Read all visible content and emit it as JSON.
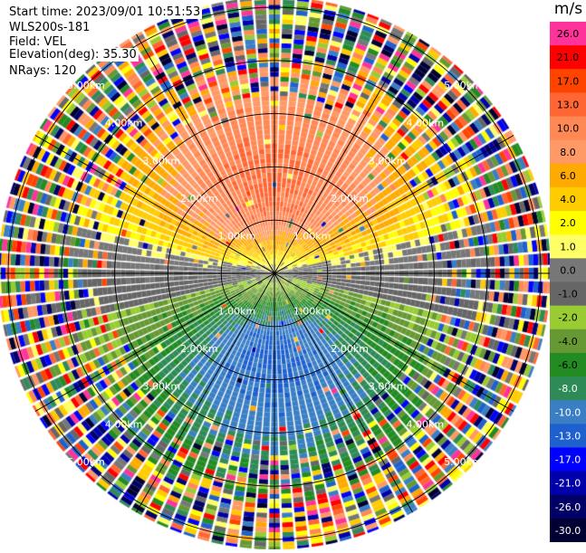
{
  "header": {
    "start_time": "Start time: 2023/09/01 10:51:53",
    "instrument": "WLS200s-181",
    "field": "Field: VEL",
    "elevation": "Elevation(deg): 35.30",
    "nrays": "NRays: 120"
  },
  "colorbar": {
    "unit": "m/s",
    "ticks": [
      "26.0",
      "21.0",
      "17.0",
      "13.0",
      "10.0",
      "8.0",
      "6.0",
      "4.0",
      "2.0",
      "1.0",
      "0.0",
      "-1.0",
      "-2.0",
      "-4.0",
      "-6.0",
      "-8.0",
      "-10.0",
      "-13.0",
      "-17.0",
      "-21.0",
      "-26.0",
      "-30.0"
    ],
    "colors": [
      "#ff3399",
      "#ff0000",
      "#ff4400",
      "#ff6633",
      "#ff8855",
      "#ff9966",
      "#ffaa00",
      "#ffcc00",
      "#ffff00",
      "#ffff66",
      "#777777",
      "#666666",
      "#99cc33",
      "#669933",
      "#228b22",
      "#2e8b57",
      "#3a7fc4",
      "#1e60d0",
      "#0000ff",
      "#0000aa",
      "#000066",
      "#000033"
    ]
  },
  "chart_data": {
    "type": "heatmap",
    "projection": "polar (PPI scan)",
    "field": "VEL",
    "units": "m/s",
    "elevation_deg": 35.3,
    "nrays": 120,
    "range_rings_km": [
      1.0,
      2.0,
      3.0,
      4.0,
      5.0
    ],
    "range_labels": [
      "1.00km",
      "2.00km",
      "3.00km",
      "4.00km",
      "5.00km"
    ],
    "spokes_deg": [
      0,
      30,
      60,
      90,
      120,
      150,
      180,
      210,
      240,
      270,
      300,
      330
    ],
    "velocity_pattern": {
      "north_sector": "positive velocities about 6 to 13 m/s (orange/red), strongest near 1.5 to 2.5 km",
      "east_west_axis": "near zero to 2 m/s (yellow/grey)",
      "south_sector": "negative velocities about -8 to -13 m/s (blue), strongest near 1.5 to 2.5 km",
      "beyond_about_3km": "noisy, random values across the full colour scale"
    }
  }
}
